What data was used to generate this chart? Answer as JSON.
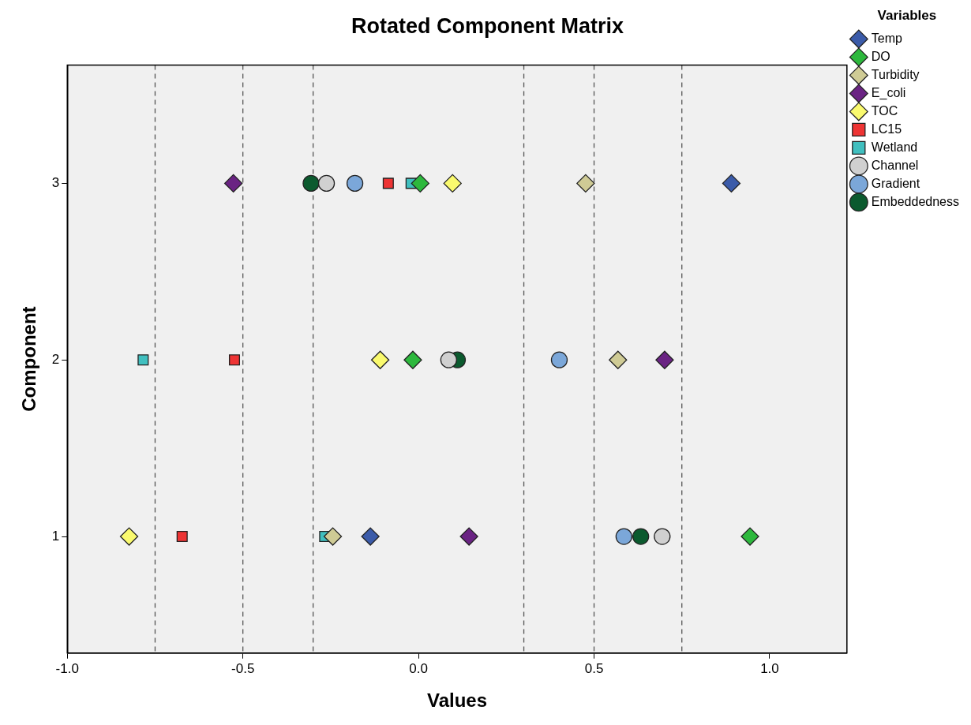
{
  "chart_data": {
    "type": "scatter",
    "title": "Rotated Component Matrix",
    "xlabel": "Values",
    "ylabel": "Component",
    "legend_title": "Variables",
    "legend": "right",
    "grid": false,
    "xlim": [
      -1.0,
      1.22
    ],
    "xticks": [
      {
        "value": -1,
        "label": "-1.0"
      },
      {
        "value": -0.5,
        "label": "-0.5"
      },
      {
        "value": 0,
        "label": "0.0"
      },
      {
        "value": 0.5,
        "label": "0.5"
      },
      {
        "value": 1,
        "label": "1.0"
      }
    ],
    "ylim": [
      0.34,
      3.67
    ],
    "yticks": [
      1,
      2,
      3
    ],
    "ref_lines": [
      {
        "axis": "x",
        "value": -0.75,
        "color": "#555555",
        "line_style": "dashed"
      },
      {
        "axis": "x",
        "value": -0.5,
        "color": "#555555",
        "line_style": "dashed"
      },
      {
        "axis": "x",
        "value": -0.3,
        "color": "#555555",
        "line_style": "dashed"
      },
      {
        "axis": "x",
        "value": 0.3,
        "color": "#555555",
        "line_style": "dashed"
      },
      {
        "axis": "x",
        "value": 0.5,
        "color": "#555555",
        "line_style": "dashed"
      },
      {
        "axis": "x",
        "value": 0.75,
        "color": "#555555",
        "line_style": "dashed"
      }
    ],
    "series": [
      {
        "name": "Temp",
        "color": "#3b5ba9",
        "marker": "diamond",
        "x": [
          -0.137,
          null,
          0.891
        ],
        "values": [
          1,
          null,
          3
        ]
      },
      {
        "name": "DO",
        "color": "#2db83d",
        "marker": "diamond",
        "x": [
          0.944,
          -0.016,
          0.005
        ],
        "values": [
          1,
          2,
          3
        ]
      },
      {
        "name": "Turbidity",
        "color": "#cfcb95",
        "marker": "diamond",
        "x": [
          -0.244,
          0.568,
          0.476
        ],
        "values": [
          1,
          2,
          3
        ]
      },
      {
        "name": "E_coli",
        "color": "#6a2383",
        "marker": "diamond",
        "x": [
          0.144,
          0.701,
          -0.527
        ],
        "values": [
          1,
          2,
          3
        ]
      },
      {
        "name": "TOC",
        "color": "#fafa6e",
        "marker": "diamond",
        "x": [
          -0.824,
          -0.109,
          0.097
        ],
        "values": [
          1,
          2,
          3
        ]
      },
      {
        "name": "LC15",
        "color": "#ee3434",
        "marker": "square",
        "x": [
          -0.673,
          -0.524,
          -0.086
        ],
        "values": [
          1,
          2,
          3
        ]
      },
      {
        "name": "Wetland",
        "color": "#40bfbf",
        "marker": "square",
        "x": [
          -0.267,
          -0.784,
          -0.021
        ],
        "values": [
          1,
          2,
          3
        ]
      },
      {
        "name": "Channel",
        "color": "#d0d0d0",
        "marker": "circle",
        "x": [
          0.694,
          0.086,
          -0.262
        ],
        "values": [
          1,
          2,
          3
        ]
      },
      {
        "name": "Gradient",
        "color": "#7ba7d9",
        "marker": "circle",
        "x": [
          0.585,
          0.401,
          -0.181
        ],
        "values": [
          1,
          2,
          3
        ]
      },
      {
        "name": "Embeddedness",
        "color": "#0b5a2e",
        "marker": "circle",
        "x": [
          0.633,
          0.111,
          -0.306
        ],
        "values": [
          1,
          2,
          3
        ]
      }
    ]
  }
}
